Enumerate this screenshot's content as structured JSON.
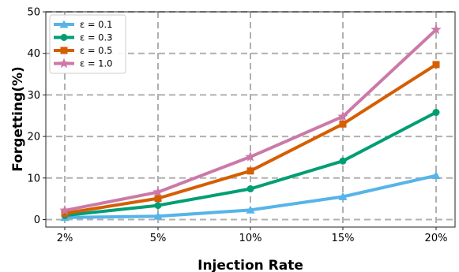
{
  "chart_data": {
    "type": "line",
    "xlabel": "Injection Rate",
    "ylabel": "Forgetting(%)",
    "categories": [
      "2%",
      "5%",
      "10%",
      "15%",
      "20%"
    ],
    "ylim": [
      0,
      50
    ],
    "yticks": [
      "0",
      "10",
      "20",
      "30",
      "40",
      "50"
    ],
    "grid": true,
    "legend_position": "top-left",
    "series": [
      {
        "name": "ε = 0.1",
        "marker": "triangle",
        "color": "#56b4e9",
        "values": [
          0.5,
          0.8,
          2.3,
          5.5,
          10.6
        ]
      },
      {
        "name": "ε = 0.3",
        "marker": "circle",
        "color": "#009e73",
        "values": [
          1.0,
          3.4,
          7.4,
          14.1,
          25.8
        ]
      },
      {
        "name": "ε = 0.5",
        "marker": "square",
        "color": "#d55e00",
        "values": [
          1.5,
          5.1,
          11.7,
          23.0,
          37.3
        ]
      },
      {
        "name": "ε = 1.0",
        "marker": "star",
        "color": "#cc79a7",
        "values": [
          2.2,
          6.6,
          15.1,
          24.8,
          45.7
        ]
      }
    ]
  }
}
